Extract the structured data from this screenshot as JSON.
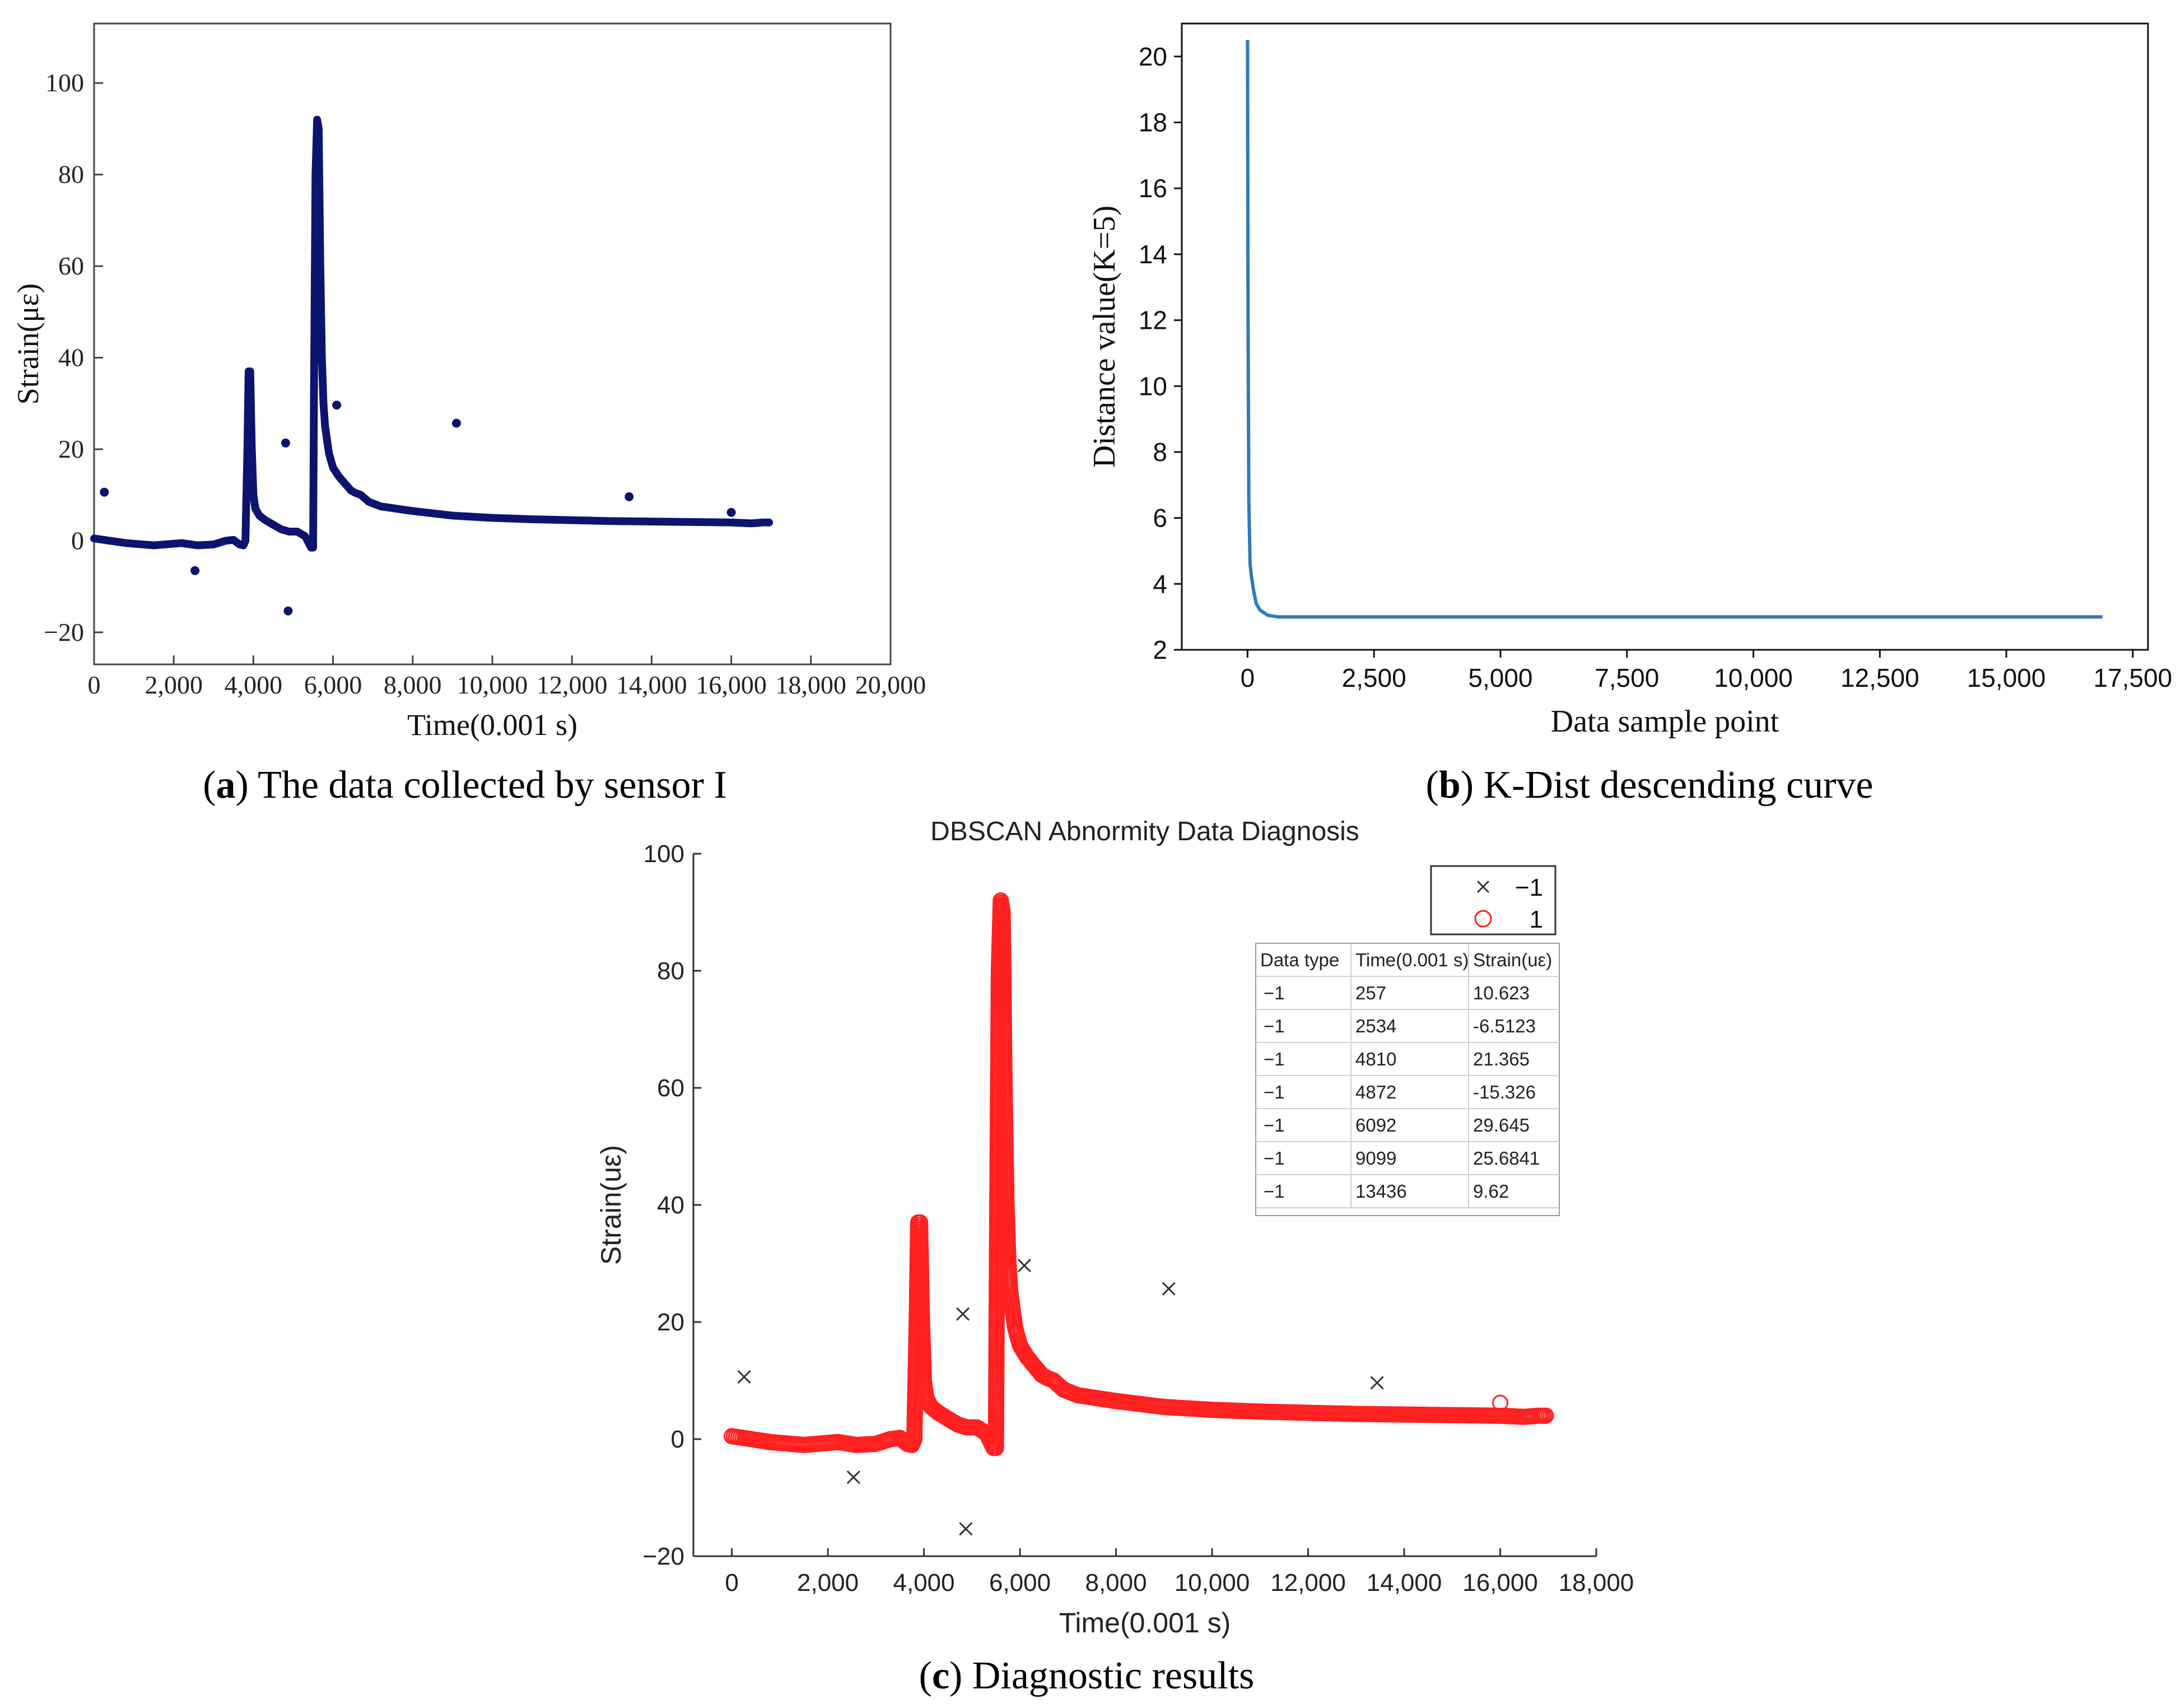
{
  "figure": {
    "panels": [
      {
        "letter": "a",
        "caption": " The data collected by sensor I"
      },
      {
        "letter": "b",
        "caption": " K-Dist descending curve"
      },
      {
        "letter": "c",
        "caption": " Diagnostic results"
      }
    ]
  },
  "chart_data": [
    {
      "id": "a",
      "type": "scatter",
      "title": "",
      "xlabel": "Time(0.001 s)",
      "ylabel": "Strain(με)",
      "xlim": [
        0,
        20000
      ],
      "ylim": [
        -27,
        113
      ],
      "xticks": [
        0,
        2000,
        4000,
        6000,
        8000,
        10000,
        12000,
        14000,
        16000,
        18000,
        20000
      ],
      "xtick_labels": [
        "0",
        "2,000",
        "4,000",
        "6,000",
        "8,000",
        "10,000",
        "12,000",
        "14,000",
        "16,000",
        "18,000",
        "20,000"
      ],
      "yticks": [
        -20,
        0,
        20,
        40,
        60,
        80,
        100
      ],
      "ytick_labels": [
        "−20",
        "0",
        "20",
        "40",
        "60",
        "80",
        "100"
      ],
      "color": "#0d1470",
      "series": [
        {
          "name": "strain",
          "x": [
            0,
            800,
            1500,
            2200,
            2600,
            3000,
            3300,
            3500,
            3650,
            3750,
            3800,
            3850,
            3880,
            3920,
            3960,
            4000,
            4050,
            4150,
            4300,
            4500,
            4700,
            4900,
            5100,
            5300,
            5450,
            5500,
            5520,
            5560,
            5600,
            5640,
            5680,
            5720,
            5760,
            5800,
            5850,
            5900,
            6000,
            6150,
            6300,
            6450,
            6550,
            6700,
            6900,
            7200,
            7600,
            8000,
            8500,
            9000,
            10000,
            11000,
            12000,
            13000,
            14000,
            15000,
            16000,
            16500,
            16800,
            16950
          ],
          "y": [
            0.5,
            -0.5,
            -1.0,
            -0.5,
            -1.0,
            -0.8,
            0.0,
            0.2,
            -0.8,
            -1.0,
            0.0,
            20.0,
            37.0,
            37.0,
            20.0,
            10.0,
            7.0,
            5.5,
            4.5,
            3.5,
            2.5,
            2.0,
            2.0,
            1.0,
            -1.5,
            -1.5,
            30.0,
            80.0,
            92.0,
            90.0,
            60.0,
            40.0,
            30.0,
            25.0,
            22.0,
            19.0,
            16.0,
            14.0,
            12.5,
            11.0,
            10.5,
            10.0,
            8.5,
            7.5,
            7.0,
            6.5,
            6.0,
            5.5,
            5.0,
            4.7,
            4.5,
            4.3,
            4.2,
            4.1,
            4.0,
            3.8,
            4.0,
            4.0
          ]
        }
      ],
      "outliers": {
        "x": [
          257,
          2534,
          4810,
          4872,
          6092,
          9099,
          13436,
          16000
        ],
        "y": [
          10.623,
          -6.5123,
          21.365,
          -15.326,
          29.645,
          25.6841,
          9.62,
          6.2
        ]
      }
    },
    {
      "id": "b",
      "type": "line",
      "title": "",
      "xlabel": "Data sample point",
      "ylabel": "Distance value(K=5)",
      "xlim": [
        -1300,
        17800
      ],
      "ylim": [
        2,
        21
      ],
      "xticks": [
        0,
        2500,
        5000,
        7500,
        10000,
        12500,
        15000,
        17500
      ],
      "xtick_labels": [
        "0",
        "2,500",
        "5,000",
        "7,500",
        "10,000",
        "12,500",
        "15,000",
        "17,500"
      ],
      "yticks": [
        2,
        4,
        6,
        8,
        10,
        12,
        14,
        16,
        18,
        20
      ],
      "ytick_labels": [
        "2",
        "4",
        "6",
        "8",
        "10",
        "12",
        "14",
        "16",
        "18",
        "20"
      ],
      "color": "#2f7ab8",
      "series": [
        {
          "name": "k-dist",
          "x": [
            0,
            10,
            25,
            50,
            80,
            120,
            170,
            250,
            400,
            600,
            1000,
            5000,
            10000,
            15000,
            16900
          ],
          "y": [
            20.5,
            12.0,
            6.5,
            4.6,
            4.2,
            3.8,
            3.4,
            3.2,
            3.05,
            3.0,
            3.0,
            3.0,
            3.0,
            3.0,
            3.0
          ]
        }
      ]
    },
    {
      "id": "c",
      "type": "scatter",
      "title": "DBSCAN Abnormity Data Diagnosis",
      "xlabel": "Time(0.001 s)",
      "ylabel": "Strain(uε)",
      "xlim": [
        -800,
        18000
      ],
      "ylim": [
        -20,
        100
      ],
      "xticks": [
        0,
        2000,
        4000,
        6000,
        8000,
        10000,
        12000,
        14000,
        16000,
        18000
      ],
      "xtick_labels": [
        "0",
        "2,000",
        "4,000",
        "6,000",
        "8,000",
        "10,000",
        "12,000",
        "14,000",
        "16,000",
        "18,000"
      ],
      "yticks": [
        -20,
        0,
        20,
        40,
        60,
        80,
        100
      ],
      "ytick_labels": [
        "−20",
        "0",
        "20",
        "40",
        "60",
        "80",
        "100"
      ],
      "legend": {
        "position": "top-right",
        "entries": [
          {
            "label": "−1",
            "marker": "x"
          },
          {
            "label": "1",
            "marker": "o"
          }
        ]
      },
      "series": [
        {
          "name": "−1",
          "marker": "x",
          "color": "#333333",
          "x": [
            257,
            2534,
            4810,
            4872,
            6092,
            9099,
            13436
          ],
          "y": [
            10.623,
            -6.5123,
            21.365,
            -15.326,
            29.645,
            25.6841,
            9.62
          ]
        },
        {
          "name": "1",
          "marker": "o",
          "color": "#ff2020",
          "x": [
            0,
            800,
            1500,
            2200,
            2600,
            3000,
            3300,
            3500,
            3650,
            3750,
            3800,
            3850,
            3880,
            3920,
            3960,
            4000,
            4050,
            4150,
            4300,
            4500,
            4700,
            4900,
            5100,
            5300,
            5450,
            5500,
            5520,
            5560,
            5600,
            5640,
            5680,
            5720,
            5760,
            5800,
            5850,
            5900,
            6000,
            6150,
            6300,
            6450,
            6550,
            6700,
            6900,
            7200,
            7600,
            8000,
            8500,
            9000,
            10000,
            11000,
            12000,
            13000,
            14000,
            15000,
            16000,
            16500,
            16800,
            16950
          ],
          "y": [
            0.5,
            -0.5,
            -1.0,
            -0.5,
            -1.0,
            -0.8,
            0.0,
            0.2,
            -0.8,
            -1.0,
            0.0,
            20.0,
            37.0,
            37.0,
            20.0,
            10.0,
            7.0,
            5.5,
            4.5,
            3.5,
            2.5,
            2.0,
            2.0,
            1.0,
            -1.5,
            -1.5,
            30.0,
            80.0,
            92.0,
            90.0,
            60.0,
            40.0,
            30.0,
            25.0,
            22.0,
            19.0,
            16.0,
            14.0,
            12.5,
            11.0,
            10.5,
            10.0,
            8.5,
            7.5,
            7.0,
            6.5,
            6.0,
            5.5,
            5.0,
            4.7,
            4.5,
            4.3,
            4.2,
            4.1,
            4.0,
            3.8,
            4.0,
            4.0
          ],
          "extra_points": {
            "x": [
              16000
            ],
            "y": [
              6.2
            ]
          }
        }
      ],
      "table": {
        "headers": [
          "Data type",
          "Time(0.001 s)",
          "Strain(uε)"
        ],
        "rows": [
          [
            "−1",
            "257",
            "10.623"
          ],
          [
            "−1",
            "2534",
            "-6.5123"
          ],
          [
            "−1",
            "4810",
            "21.365"
          ],
          [
            "−1",
            "4872",
            "-15.326"
          ],
          [
            "−1",
            "6092",
            "29.645"
          ],
          [
            "−1",
            "9099",
            "25.6841"
          ],
          [
            "−1",
            "13436",
            "9.62"
          ]
        ]
      }
    }
  ]
}
